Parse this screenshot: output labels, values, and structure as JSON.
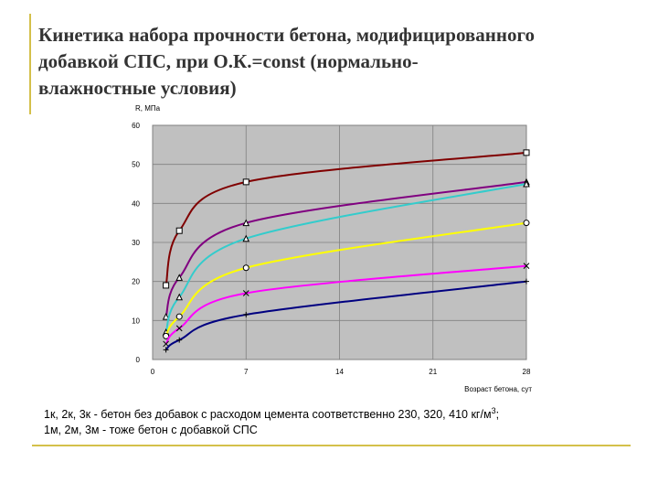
{
  "chart_data": {
    "type": "line",
    "title": [
      "Кинетика набора прочности бетона, модифицированного",
      "добавкой СПС, при О.К.=const (нормально-",
      "влажностные   условия)"
    ],
    "y_label": "R, МПа",
    "x_label": "Возраст бетона, сут",
    "x": [
      1,
      2,
      7,
      28
    ],
    "series": [
      {
        "color": "#800000",
        "marker": "square",
        "values": [
          19,
          33,
          45.5,
          53
        ]
      },
      {
        "color": "#800080",
        "marker": "triangle",
        "values": [
          11,
          21,
          35,
          45.5
        ]
      },
      {
        "color": "#33cccc",
        "marker": "triangle",
        "values": [
          7,
          16,
          31,
          45
        ]
      },
      {
        "color": "#ffff00",
        "marker": "circle",
        "values": [
          6,
          11,
          23.5,
          35
        ]
      },
      {
        "color": "#ff00ff",
        "marker": "cross",
        "values": [
          4,
          8,
          17,
          24
        ]
      },
      {
        "color": "#000080",
        "marker": "plus",
        "values": [
          2.5,
          5,
          11.5,
          20
        ]
      }
    ],
    "xlim": [
      0,
      28
    ],
    "xticks": [
      0,
      7,
      14,
      21,
      28
    ],
    "ylim": [
      0,
      60
    ],
    "yticks": [
      0,
      10,
      20,
      30,
      40,
      50,
      60
    ],
    "grid": true,
    "annotations": [
      "1к, 2к, 3к - бетон без добавок с расходом цемента соответственно 230, 320, 410 кг/м",
      "3",
      ";",
      "1м, 2м, 3м - тоже бетон с добавкой СПС"
    ]
  }
}
